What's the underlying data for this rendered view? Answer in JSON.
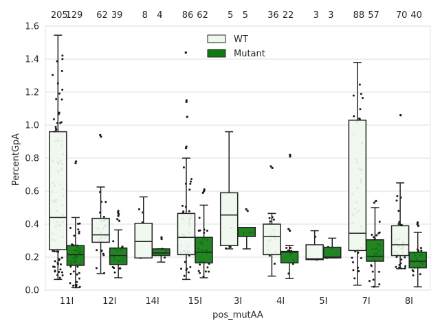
{
  "chart_data": {
    "type": "box",
    "xlabel": "pos_mutAA",
    "ylabel": "PercentGpA",
    "ylim": [
      0,
      1.6
    ],
    "yticks": [
      0.0,
      0.2,
      0.4,
      0.6,
      0.8,
      1.0,
      1.2,
      1.4,
      1.6
    ],
    "ytick_labels": [
      "0.0",
      "0.2",
      "0.4",
      "0.6",
      "0.8",
      "1.0",
      "1.2",
      "1.4",
      "1.6"
    ],
    "grid": true,
    "legend_position": "top-center",
    "categories": [
      "11I",
      "12I",
      "14I",
      "15I",
      "3I",
      "4I",
      "5I",
      "7I",
      "8I"
    ],
    "series": [
      {
        "name": "WT",
        "color": "#eff7ef",
        "counts": [
          "205",
          "62",
          "8",
          "86",
          "5",
          "36",
          "3",
          "88",
          "70"
        ],
        "boxes": [
          {
            "whislo": 0.065,
            "q1": 0.245,
            "med": 0.44,
            "q3": 0.96,
            "whishi": 1.545
          },
          {
            "whislo": 0.1,
            "q1": 0.29,
            "med": 0.335,
            "q3": 0.435,
            "whishi": 0.625
          },
          {
            "whislo": 0.195,
            "q1": 0.195,
            "med": 0.295,
            "q3": 0.405,
            "whishi": 0.565
          },
          {
            "whislo": 0.065,
            "q1": 0.215,
            "med": 0.32,
            "q3": 0.465,
            "whishi": 0.8
          },
          {
            "whislo": 0.25,
            "q1": 0.27,
            "med": 0.455,
            "q3": 0.59,
            "whishi": 0.96
          },
          {
            "whislo": 0.085,
            "q1": 0.215,
            "med": 0.325,
            "q3": 0.4,
            "whishi": 0.465
          },
          {
            "whislo": 0.185,
            "q1": 0.185,
            "med": 0.19,
            "q3": 0.275,
            "whishi": 0.36
          },
          {
            "whislo": 0.03,
            "q1": 0.24,
            "med": 0.345,
            "q3": 1.03,
            "whishi": 1.38
          },
          {
            "whislo": 0.13,
            "q1": 0.21,
            "med": 0.275,
            "q3": 0.39,
            "whishi": 0.65
          }
        ],
        "outliers": [
          [],
          [
            0.94,
            0.93
          ],
          [],
          [
            1.44,
            1.44,
            1.15,
            1.14,
            1.05,
            0.87,
            0.86
          ],
          [],
          [
            0.75,
            0.74
          ],
          [],
          [],
          [
            1.06,
            1.06
          ]
        ]
      },
      {
        "name": "Mutant",
        "color": "#0f7a0f",
        "counts": [
          "129",
          "39",
          "4",
          "62",
          "5",
          "22",
          "3",
          "57",
          "40"
        ],
        "boxes": [
          {
            "whislo": 0.015,
            "q1": 0.15,
            "med": 0.215,
            "q3": 0.27,
            "whishi": 0.44
          },
          {
            "whislo": 0.075,
            "q1": 0.155,
            "med": 0.21,
            "q3": 0.255,
            "whishi": 0.365
          },
          {
            "whislo": 0.17,
            "q1": 0.21,
            "med": 0.225,
            "q3": 0.25,
            "whishi": 0.25
          },
          {
            "whislo": 0.075,
            "q1": 0.165,
            "med": 0.23,
            "q3": 0.32,
            "whishi": 0.515
          },
          {
            "whislo": 0.25,
            "q1": 0.325,
            "med": 0.38,
            "q3": 0.38,
            "whishi": 0.38
          },
          {
            "whislo": 0.07,
            "q1": 0.165,
            "med": 0.23,
            "q3": 0.235,
            "whishi": 0.27
          },
          {
            "whislo": 0.195,
            "q1": 0.195,
            "med": 0.2,
            "q3": 0.26,
            "whishi": 0.315
          },
          {
            "whislo": 0.02,
            "q1": 0.175,
            "med": 0.205,
            "q3": 0.305,
            "whishi": 0.5
          },
          {
            "whislo": 0.02,
            "q1": 0.135,
            "med": 0.175,
            "q3": 0.23,
            "whishi": 0.35
          }
        ],
        "outliers": [
          [
            0.78,
            0.77
          ],
          [
            0.48,
            0.47,
            0.46,
            0.45,
            0.43,
            0.42
          ],
          [
            0.32,
            0.31
          ],
          [
            0.61,
            0.6,
            0.59
          ],
          [
            0.49,
            0.48
          ],
          [
            0.82,
            0.81,
            0.37,
            0.36
          ],
          [],
          [
            0.54,
            0.53
          ],
          [
            0.41,
            0.4,
            0.39
          ]
        ]
      }
    ]
  }
}
